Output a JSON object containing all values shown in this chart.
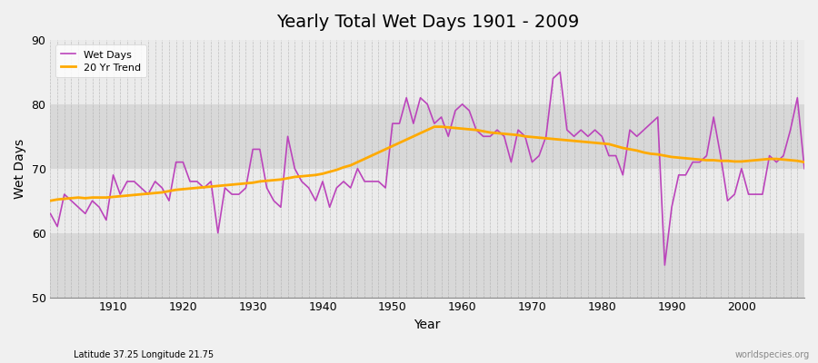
{
  "title": "Yearly Total Wet Days 1901 - 2009",
  "xlabel": "Year",
  "ylabel": "Wet Days",
  "subtitle": "Latitude 37.25 Longitude 21.75",
  "watermark": "worldspecies.org",
  "ylim": [
    50,
    90
  ],
  "yticks": [
    50,
    60,
    70,
    80,
    90
  ],
  "xlim": [
    1901,
    2009
  ],
  "xticks": [
    1910,
    1920,
    1930,
    1940,
    1950,
    1960,
    1970,
    1980,
    1990,
    2000
  ],
  "wet_days_color": "#bb44bb",
  "trend_color": "#ffaa00",
  "bg_light": "#ebebeb",
  "bg_dark": "#d8d8d8",
  "legend_wet": "Wet Days",
  "legend_trend": "20 Yr Trend",
  "years": [
    1901,
    1902,
    1903,
    1904,
    1905,
    1906,
    1907,
    1908,
    1909,
    1910,
    1911,
    1912,
    1913,
    1914,
    1915,
    1916,
    1917,
    1918,
    1919,
    1920,
    1921,
    1922,
    1923,
    1924,
    1925,
    1926,
    1927,
    1928,
    1929,
    1930,
    1931,
    1932,
    1933,
    1934,
    1935,
    1936,
    1937,
    1938,
    1939,
    1940,
    1941,
    1942,
    1943,
    1944,
    1945,
    1946,
    1947,
    1948,
    1949,
    1950,
    1951,
    1952,
    1953,
    1954,
    1955,
    1956,
    1957,
    1958,
    1959,
    1960,
    1961,
    1962,
    1963,
    1964,
    1965,
    1966,
    1967,
    1968,
    1969,
    1970,
    1971,
    1972,
    1973,
    1974,
    1975,
    1976,
    1977,
    1978,
    1979,
    1980,
    1981,
    1982,
    1983,
    1984,
    1985,
    1986,
    1987,
    1988,
    1989,
    1990,
    1991,
    1992,
    1993,
    1994,
    1995,
    1996,
    1997,
    1998,
    1999,
    2000,
    2001,
    2002,
    2003,
    2004,
    2005,
    2006,
    2007,
    2008,
    2009
  ],
  "wet_days": [
    63,
    61,
    66,
    65,
    64,
    63,
    65,
    64,
    62,
    69,
    66,
    68,
    68,
    67,
    66,
    68,
    67,
    65,
    71,
    71,
    68,
    68,
    67,
    68,
    60,
    67,
    66,
    66,
    67,
    73,
    73,
    67,
    65,
    64,
    75,
    70,
    68,
    67,
    65,
    68,
    64,
    67,
    68,
    67,
    70,
    68,
    68,
    68,
    67,
    77,
    77,
    81,
    77,
    81,
    80,
    77,
    78,
    75,
    79,
    80,
    79,
    76,
    75,
    75,
    76,
    75,
    71,
    76,
    75,
    71,
    72,
    75,
    84,
    85,
    76,
    75,
    76,
    75,
    76,
    75,
    72,
    72,
    69,
    76,
    75,
    76,
    77,
    78,
    55,
    64,
    69,
    69,
    71,
    71,
    72,
    78,
    72,
    65,
    66,
    70,
    66,
    66,
    66,
    72,
    71,
    72,
    76,
    81,
    70
  ],
  "trend": [
    65.0,
    65.2,
    65.3,
    65.4,
    65.5,
    65.4,
    65.5,
    65.5,
    65.5,
    65.6,
    65.7,
    65.8,
    65.9,
    66.0,
    66.1,
    66.2,
    66.3,
    66.5,
    66.7,
    66.8,
    66.9,
    67.0,
    67.1,
    67.2,
    67.3,
    67.4,
    67.5,
    67.6,
    67.7,
    67.8,
    68.0,
    68.1,
    68.2,
    68.3,
    68.5,
    68.7,
    68.8,
    68.9,
    69.0,
    69.2,
    69.5,
    69.8,
    70.2,
    70.5,
    71.0,
    71.5,
    72.0,
    72.5,
    73.0,
    73.5,
    74.0,
    74.5,
    75.0,
    75.5,
    76.0,
    76.5,
    76.5,
    76.4,
    76.3,
    76.2,
    76.1,
    76.0,
    75.8,
    75.6,
    75.5,
    75.4,
    75.3,
    75.2,
    75.0,
    74.9,
    74.8,
    74.7,
    74.6,
    74.5,
    74.4,
    74.3,
    74.2,
    74.1,
    74.0,
    73.9,
    73.8,
    73.5,
    73.2,
    73.0,
    72.8,
    72.5,
    72.3,
    72.2,
    72.0,
    71.8,
    71.7,
    71.6,
    71.5,
    71.4,
    71.3,
    71.3,
    71.2,
    71.2,
    71.1,
    71.1,
    71.2,
    71.3,
    71.4,
    71.5,
    71.5,
    71.4,
    71.3,
    71.2,
    71.0
  ]
}
